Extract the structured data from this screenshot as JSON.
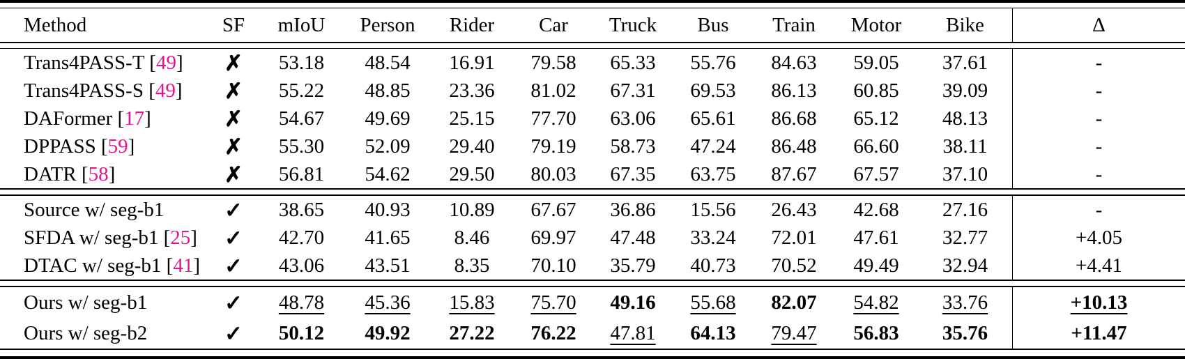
{
  "colors": {
    "citation": "#e6148c"
  },
  "table": {
    "columns": [
      "Method",
      "SF",
      "mIoU",
      "Person",
      "Rider",
      "Car",
      "Truck",
      "Bus",
      "Train",
      "Motor",
      "Bike",
      "Δ"
    ]
  },
  "rows": [
    {
      "method_pre": "Trans4PASS-T [",
      "cite": "49",
      "method_post": "]",
      "sf": "✗",
      "vals": [
        "53.18",
        "48.54",
        "16.91",
        "79.58",
        "65.33",
        "55.76",
        "84.63",
        "59.05",
        "37.61"
      ],
      "delta": "-"
    },
    {
      "method_pre": "Trans4PASS-S [",
      "cite": "49",
      "method_post": "]",
      "sf": "✗",
      "vals": [
        "55.22",
        "48.85",
        "23.36",
        "81.02",
        "67.31",
        "69.53",
        "86.13",
        "60.85",
        "39.09"
      ],
      "delta": "-"
    },
    {
      "method_pre": "DAFormer [",
      "cite": "17",
      "method_post": "]",
      "sf": "✗",
      "vals": [
        "54.67",
        "49.69",
        "25.15",
        "77.70",
        "63.06",
        "65.61",
        "86.68",
        "65.12",
        "48.13"
      ],
      "delta": "-"
    },
    {
      "method_pre": "DPPASS [",
      "cite": "59",
      "method_post": "]",
      "sf": "✗",
      "vals": [
        "55.30",
        "52.09",
        "29.40",
        "79.19",
        "58.73",
        "47.24",
        "86.48",
        "66.60",
        "38.11"
      ],
      "delta": "-"
    },
    {
      "method_pre": "DATR [",
      "cite": "58",
      "method_post": "]",
      "sf": "✗",
      "vals": [
        "56.81",
        "54.62",
        "29.50",
        "80.03",
        "67.35",
        "63.75",
        "87.67",
        "67.57",
        "37.10"
      ],
      "delta": "-"
    },
    {
      "method_pre": "Source w/ seg-b1",
      "cite": "",
      "method_post": "",
      "sf": "✓",
      "vals": [
        "38.65",
        "40.93",
        "10.89",
        "67.67",
        "36.86",
        "15.56",
        "26.43",
        "42.68",
        "27.16"
      ],
      "delta": "-"
    },
    {
      "method_pre": "SFDA w/ seg-b1 [",
      "cite": "25",
      "method_post": "]",
      "sf": "✓",
      "vals": [
        "42.70",
        "41.65",
        "8.46",
        "69.97",
        "47.48",
        "33.24",
        "72.01",
        "47.61",
        "32.77"
      ],
      "delta": "+4.05"
    },
    {
      "method_pre": "DTAC w/ seg-b1 [",
      "cite": "41",
      "method_post": "]",
      "sf": "✓",
      "vals": [
        "43.06",
        "43.51",
        "8.35",
        "70.10",
        "35.79",
        "40.73",
        "70.52",
        "49.49",
        "32.94"
      ],
      "delta": "+4.41"
    },
    {
      "method_pre": "Ours w/ seg-b1",
      "cite": "",
      "method_post": "",
      "sf": "✓",
      "vals": [
        "48.78",
        "45.36",
        "15.83",
        "75.70",
        "49.16",
        "55.68",
        "82.07",
        "54.82",
        "33.76"
      ],
      "delta": "+10.13"
    },
    {
      "method_pre": "Ours w/ seg-b2",
      "cite": "",
      "method_post": "",
      "sf": "✓",
      "vals": [
        "50.12",
        "49.92",
        "27.22",
        "76.22",
        "47.81",
        "64.13",
        "79.47",
        "56.83",
        "35.76"
      ],
      "delta": "+11.47"
    }
  ]
}
